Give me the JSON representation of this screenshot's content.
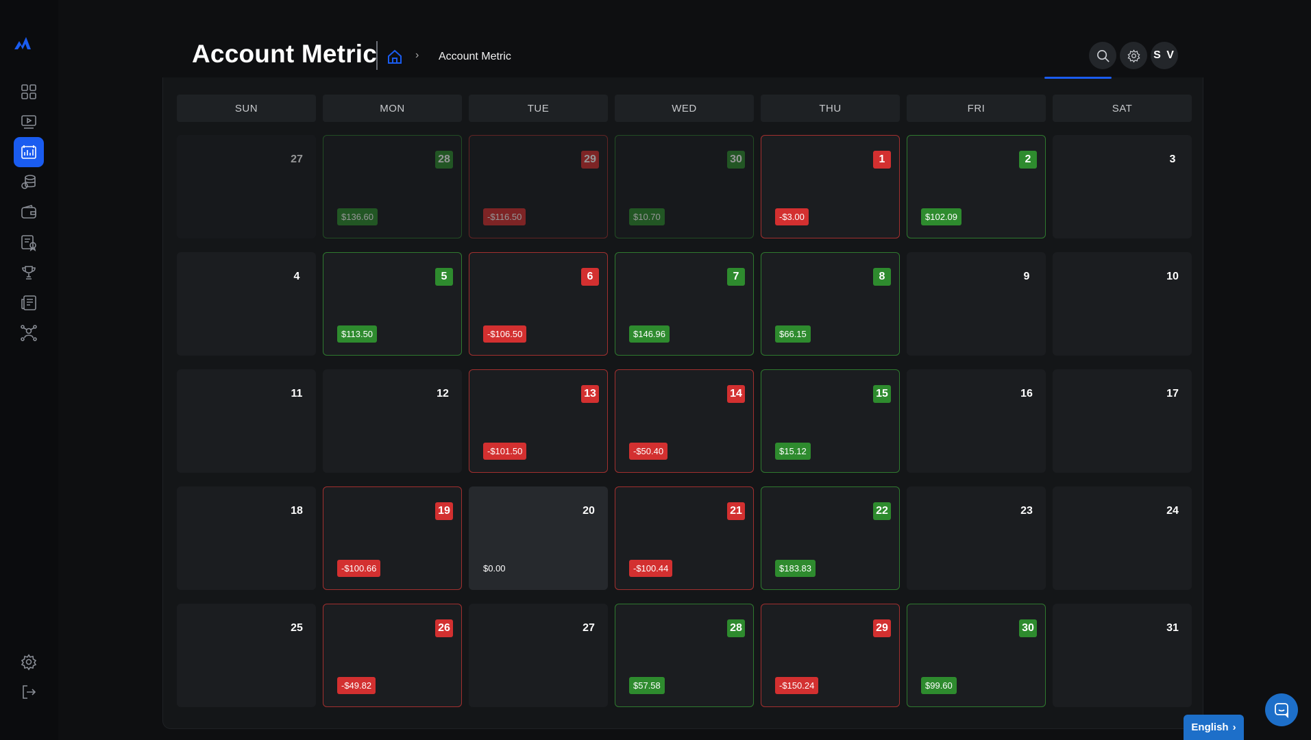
{
  "header": {
    "title": "Account Metric",
    "breadcrumb_separator": "›",
    "breadcrumb_current": "Account Metric",
    "avatar_initials": "S V"
  },
  "sidebar": {
    "items": [
      {
        "name": "dashboard-icon",
        "active": false
      },
      {
        "name": "video-icon",
        "active": false
      },
      {
        "name": "account-metric-icon",
        "active": true
      },
      {
        "name": "coins-icon",
        "active": false
      },
      {
        "name": "wallet-icon",
        "active": false
      },
      {
        "name": "certificate-icon",
        "active": false
      },
      {
        "name": "trophy-icon",
        "active": false
      },
      {
        "name": "news-icon",
        "active": false
      },
      {
        "name": "network-icon",
        "active": false
      }
    ],
    "bottom": [
      {
        "name": "settings-icon"
      },
      {
        "name": "logout-icon"
      }
    ]
  },
  "calendar": {
    "weekdays": [
      "SUN",
      "MON",
      "TUE",
      "WED",
      "THU",
      "FRI",
      "SAT"
    ],
    "weeks": [
      [
        {
          "day": "27",
          "status": "none",
          "faded": true,
          "pnl": ""
        },
        {
          "day": "28",
          "status": "win",
          "faded": true,
          "pnl": "$136.60"
        },
        {
          "day": "29",
          "status": "loss",
          "faded": true,
          "pnl": "-$116.50"
        },
        {
          "day": "30",
          "status": "win",
          "faded": true,
          "pnl": "$10.70"
        },
        {
          "day": "1",
          "status": "loss",
          "faded": false,
          "pnl": "-$3.00"
        },
        {
          "day": "2",
          "status": "win",
          "faded": false,
          "pnl": "$102.09"
        },
        {
          "day": "3",
          "status": "none",
          "faded": false,
          "pnl": ""
        }
      ],
      [
        {
          "day": "4",
          "status": "none",
          "faded": false,
          "pnl": ""
        },
        {
          "day": "5",
          "status": "win",
          "faded": false,
          "pnl": "$113.50"
        },
        {
          "day": "6",
          "status": "loss",
          "faded": false,
          "pnl": "-$106.50"
        },
        {
          "day": "7",
          "status": "win",
          "faded": false,
          "pnl": "$146.96"
        },
        {
          "day": "8",
          "status": "win",
          "faded": false,
          "pnl": "$66.15"
        },
        {
          "day": "9",
          "status": "none",
          "faded": false,
          "pnl": ""
        },
        {
          "day": "10",
          "status": "none",
          "faded": false,
          "pnl": ""
        }
      ],
      [
        {
          "day": "11",
          "status": "none",
          "faded": false,
          "pnl": ""
        },
        {
          "day": "12",
          "status": "none",
          "faded": false,
          "pnl": ""
        },
        {
          "day": "13",
          "status": "loss",
          "faded": false,
          "pnl": "-$101.50"
        },
        {
          "day": "14",
          "status": "loss",
          "faded": false,
          "pnl": "-$50.40"
        },
        {
          "day": "15",
          "status": "win",
          "faded": false,
          "pnl": "$15.12"
        },
        {
          "day": "16",
          "status": "none",
          "faded": false,
          "pnl": ""
        },
        {
          "day": "17",
          "status": "none",
          "faded": false,
          "pnl": ""
        }
      ],
      [
        {
          "day": "18",
          "status": "none",
          "faded": false,
          "pnl": ""
        },
        {
          "day": "19",
          "status": "loss",
          "faded": false,
          "pnl": "-$100.66"
        },
        {
          "day": "20",
          "status": "zero",
          "faded": false,
          "pnl": "$0.00"
        },
        {
          "day": "21",
          "status": "loss",
          "faded": false,
          "pnl": "-$100.44"
        },
        {
          "day": "22",
          "status": "win",
          "faded": false,
          "pnl": "$183.83"
        },
        {
          "day": "23",
          "status": "none",
          "faded": false,
          "pnl": ""
        },
        {
          "day": "24",
          "status": "none",
          "faded": false,
          "pnl": ""
        }
      ],
      [
        {
          "day": "25",
          "status": "none",
          "faded": false,
          "pnl": ""
        },
        {
          "day": "26",
          "status": "loss",
          "faded": false,
          "pnl": "-$49.82"
        },
        {
          "day": "27",
          "status": "none",
          "faded": false,
          "pnl": ""
        },
        {
          "day": "28",
          "status": "win",
          "faded": false,
          "pnl": "$57.58"
        },
        {
          "day": "29",
          "status": "loss",
          "faded": false,
          "pnl": "-$150.24"
        },
        {
          "day": "30",
          "status": "win",
          "faded": false,
          "pnl": "$99.60"
        },
        {
          "day": "31",
          "status": "none",
          "faded": false,
          "pnl": ""
        }
      ]
    ]
  },
  "footer": {
    "language_label": "English",
    "language_chevron": "›"
  },
  "colors": {
    "accent": "#1a5cf0",
    "win": "#2e8b2e",
    "loss": "#d33030",
    "language": "#1d6fc9"
  }
}
